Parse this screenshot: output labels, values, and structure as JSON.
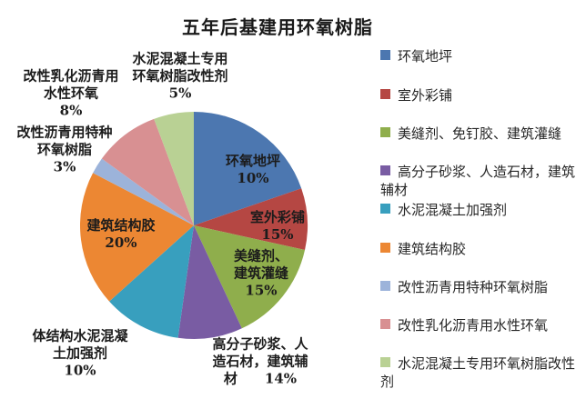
{
  "title": "五年后基建用环氧树脂",
  "chart_data": {
    "type": "pie",
    "title": "五年后基建用环氧树脂",
    "legend_position": "right",
    "grid": false,
    "slices": [
      {
        "name": "环氧地坪",
        "value": 10,
        "percent_label": "10%",
        "color": "#4C77B0",
        "drawn_start_deg": 0,
        "drawn_end_deg": 71,
        "label_placement": "inside",
        "label_lines": [
          "环氧地坪",
          "10%"
        ]
      },
      {
        "name": "室外彩铺",
        "value": 15,
        "percent_label": "15%",
        "color": "#B54743",
        "drawn_start_deg": 71,
        "drawn_end_deg": 102.5,
        "label_placement": "inside",
        "label_lines": [
          "室外彩铺",
          "15%"
        ]
      },
      {
        "name": "美缝剂、免钉胶、建筑灌缝",
        "value": 15,
        "percent_label": "15%",
        "color": "#8FAE4C",
        "drawn_start_deg": 102.5,
        "drawn_end_deg": 155,
        "label_placement": "inside",
        "label_lines": [
          "美缝剂、",
          "建筑灌缝",
          "15%"
        ]
      },
      {
        "name": "高分子砂浆、人造石材，建筑辅材",
        "value": 14,
        "percent_label": "14%",
        "color": "#795CA3",
        "drawn_start_deg": 155,
        "drawn_end_deg": 188,
        "label_placement": "outside",
        "label_lines": [
          "高分子砂浆、人",
          "造石材，建筑辅",
          "材　　14%"
        ]
      },
      {
        "name": "水泥混凝土加强剂",
        "value": 10,
        "percent_label": "10%",
        "color": "#389FBE",
        "drawn_start_deg": 188,
        "drawn_end_deg": 228,
        "label_placement": "outside",
        "label_lines": [
          "体结构水泥混凝",
          "土加强剂",
          "10%"
        ]
      },
      {
        "name": "建筑结构胶",
        "value": 20,
        "percent_label": "20%",
        "color": "#EC8733",
        "drawn_start_deg": 228,
        "drawn_end_deg": 297.5,
        "label_placement": "inside",
        "label_lines": [
          "建筑结构胶",
          "20%"
        ]
      },
      {
        "name": "改性沥青用特种环氧树脂",
        "value": 3,
        "percent_label": "3%",
        "color": "#9CB3DA",
        "drawn_start_deg": 297.5,
        "drawn_end_deg": 306,
        "label_placement": "outside",
        "label_lines": [
          "改性沥青用特种",
          "环氧树脂",
          "3%"
        ]
      },
      {
        "name": "改性乳化沥青用水性环氧",
        "value": 8,
        "percent_label": "8%",
        "color": "#D89092",
        "drawn_start_deg": 306,
        "drawn_end_deg": 339.5,
        "label_placement": "outside",
        "label_lines": [
          "改性乳化沥青用",
          "水性环氧",
          "8%"
        ]
      },
      {
        "name": "水泥混凝土专用环氧树脂改性剂",
        "value": 5,
        "percent_label": "5%",
        "color": "#B9D194",
        "drawn_start_deg": 339.5,
        "drawn_end_deg": 360,
        "label_placement": "outside",
        "label_lines": [
          "水泥混凝土专用",
          "环氧树脂改性剂",
          "5%"
        ]
      }
    ]
  }
}
